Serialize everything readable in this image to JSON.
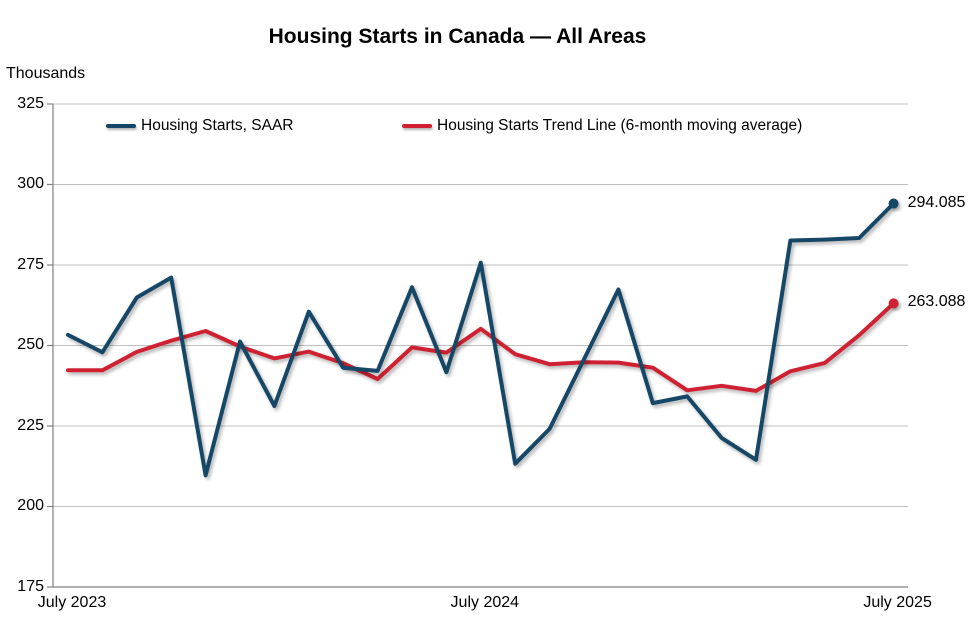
{
  "title": "Housing Starts in Canada — All Areas",
  "y_axis_unit_label": "Thousands",
  "legend": [
    {
      "label": "Housing Starts, SAAR",
      "color": "#154666"
    },
    {
      "label": "Housing Starts Trend Line (6-month moving average)",
      "color": "#CE2030"
    }
  ],
  "end_labels": {
    "saar": "294.085",
    "trend": "263.088"
  },
  "colors": {
    "saar_line": "#154666",
    "trend_line": "#CE2030",
    "gridline": "#C0C0C0",
    "axis": "#808080",
    "text": "#000000"
  },
  "chart_data": {
    "type": "line",
    "title": "Housing Starts in Canada — All Areas",
    "ylabel": "Thousands",
    "ylim": [
      175,
      325
    ],
    "y_ticks": [
      325,
      300,
      275,
      250,
      225,
      200,
      175
    ],
    "grid": "horizontal",
    "legend_position": "top-inside",
    "months": [
      "Jul 2023",
      "Aug 2023",
      "Sep 2023",
      "Oct 2023",
      "Nov 2023",
      "Dec 2023",
      "Jan 2024",
      "Feb 2024",
      "Mar 2024",
      "Apr 2024",
      "May 2024",
      "Jun 2024",
      "Jul 2024",
      "Aug 2024",
      "Sep 2024",
      "Oct 2024",
      "Nov 2024",
      "Dec 2024",
      "Jan 2025",
      "Feb 2025",
      "Mar 2025",
      "Apr 2025",
      "May 2025",
      "Jun 2025",
      "Jul 2025"
    ],
    "x_ticks": [
      {
        "index": 0,
        "label": "July 2023"
      },
      {
        "index": 12,
        "label": "July 2024"
      },
      {
        "index": 24,
        "label": "July 2025"
      }
    ],
    "series": [
      {
        "name": "Housing Starts, SAAR",
        "color": "#154666",
        "values": [
          253.3,
          247.9,
          264.9,
          271.1,
          209.7,
          251.2,
          231.2,
          260.5,
          243.1,
          242.1,
          268.1,
          241.7,
          275.7,
          213.3,
          224.1,
          245.7,
          267.4,
          232.1,
          234.2,
          221.3,
          214.5,
          282.6,
          282.9,
          283.4,
          294.085
        ],
        "end_value_label": "294.085"
      },
      {
        "name": "Housing Starts Trend Line (6-month moving average)",
        "color": "#CE2030",
        "values": [
          242.3,
          242.3,
          248.0,
          251.5,
          254.5,
          249.7,
          246.0,
          248.1,
          244.5,
          239.6,
          249.4,
          247.8,
          255.2,
          247.3,
          244.2,
          244.8,
          244.7,
          243.1,
          236.1,
          237.5,
          235.9,
          242.0,
          244.6,
          253.2,
          263.088
        ],
        "end_value_label": "263.088"
      }
    ]
  }
}
